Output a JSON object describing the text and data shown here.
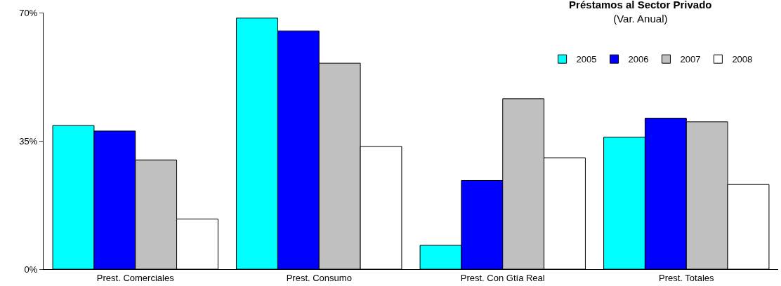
{
  "chart_data": {
    "type": "bar",
    "title": "Préstamos al Sector Privado",
    "subtitle": "(Var. Anual)",
    "categories": [
      "Prest. Comerciales",
      "Prest. Consumo",
      "Prest. Con Gtía Real",
      "Prest. Totales"
    ],
    "series": [
      {
        "name": "2005",
        "color": "#00ffff",
        "values": [
          39.2,
          68.5,
          6.5,
          36.0
        ]
      },
      {
        "name": "2006",
        "color": "#0000ff",
        "values": [
          37.7,
          65.0,
          24.2,
          41.2
        ]
      },
      {
        "name": "2007",
        "color": "#c0c0c0",
        "values": [
          29.8,
          56.2,
          46.5,
          40.2
        ]
      },
      {
        "name": "2008",
        "color": "#ffffff",
        "values": [
          13.7,
          33.5,
          30.4,
          23.1
        ]
      }
    ],
    "ylim": [
      0,
      70
    ],
    "yticks": [
      {
        "value": 0,
        "label": "0%"
      },
      {
        "value": 35,
        "label": "35%"
      },
      {
        "value": 70,
        "label": "70%"
      }
    ],
    "legend": "top right"
  }
}
